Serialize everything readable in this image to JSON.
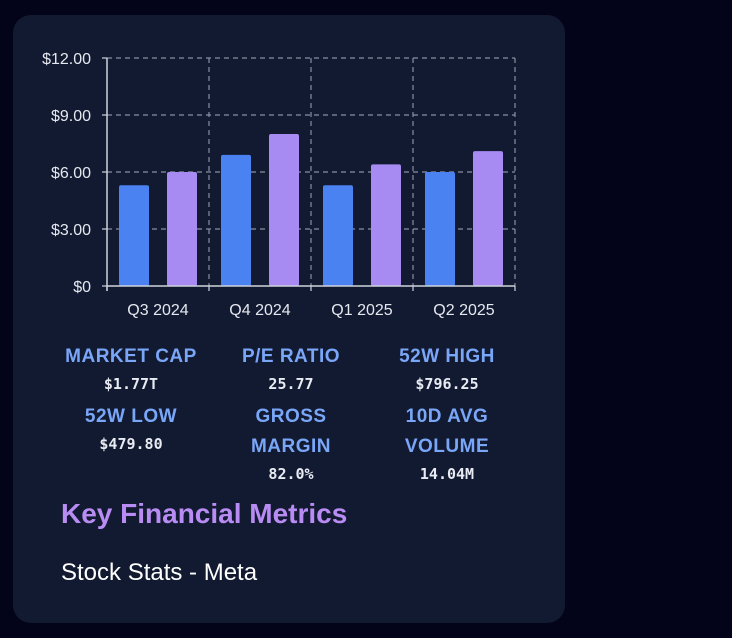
{
  "chart_data": {
    "type": "bar",
    "categories": [
      "Q3 2024",
      "Q4 2024",
      "Q1 2025",
      "Q2 2025"
    ],
    "series": [
      {
        "values": [
          5.3,
          6.9,
          5.3,
          6.0
        ],
        "color": "#4b82f1"
      },
      {
        "values": [
          6.0,
          8.0,
          6.4,
          7.1
        ],
        "color": "#a78bf3"
      }
    ],
    "ylim": [
      0,
      12
    ],
    "yticks": [
      0,
      3,
      6,
      9,
      12
    ],
    "ytick_labels": [
      "$0",
      "$3.00",
      "$6.00",
      "$9.00",
      "$12.00"
    ],
    "grid": true,
    "legend": false
  },
  "metrics": [
    {
      "label": "MARKET CAP",
      "value": "$1.77T"
    },
    {
      "label": "P/E RATIO",
      "value": "25.77"
    },
    {
      "label": "52W HIGH",
      "value": "$796.25"
    },
    {
      "label": "52W LOW",
      "value": "$479.80"
    },
    {
      "label": "GROSS MARGIN",
      "value": "82.0%"
    },
    {
      "label": "10D AVG VOLUME",
      "value": "14.04M"
    }
  ],
  "card": {
    "title": "Key Financial Metrics",
    "subtitle": "Stock Stats - Meta"
  },
  "colors": {
    "background": "#03041a",
    "card": "#121a32",
    "metric_label": "#7aa6f8",
    "title": "#b98cf3"
  }
}
